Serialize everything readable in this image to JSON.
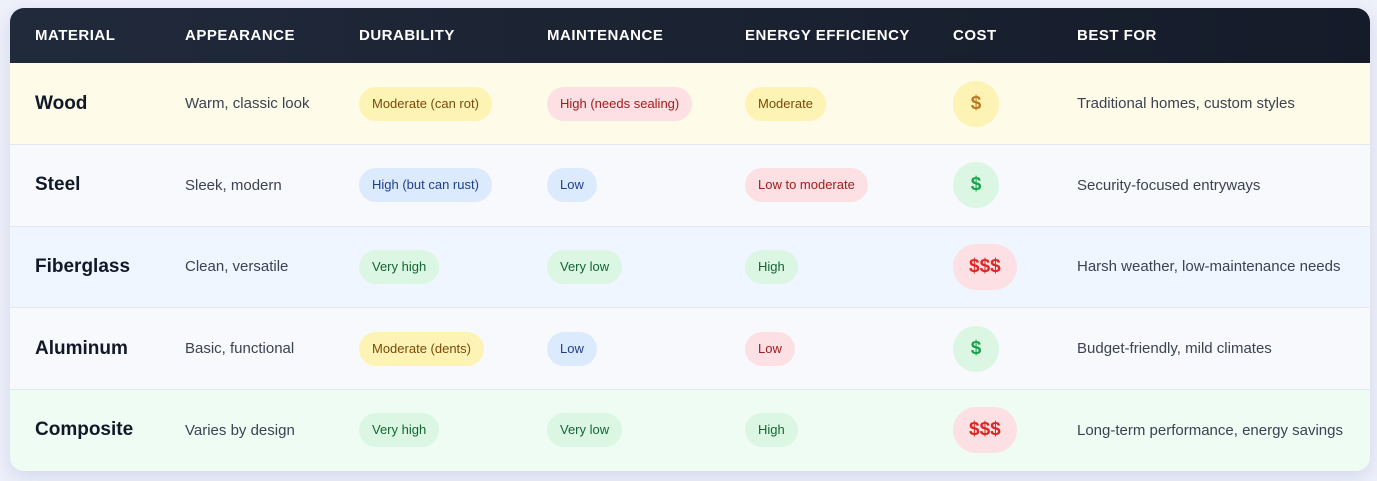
{
  "table": {
    "headers": [
      "MATERIAL",
      "APPEARANCE",
      "DURABILITY",
      "MAINTENANCE",
      "ENERGY EFFICIENCY",
      "COST",
      "BEST FOR"
    ],
    "rows": [
      {
        "material": "Wood",
        "appearance": "Warm, classic look",
        "durability": {
          "text": "Moderate (can rot)",
          "tone": "yellow"
        },
        "maintenance": {
          "text": "High (needs sealing)",
          "tone": "red"
        },
        "efficiency": {
          "text": "Moderate",
          "tone": "yellow"
        },
        "cost": {
          "text": "$",
          "tone": "yellow"
        },
        "best_for": "Traditional homes, custom styles",
        "row_bg": "#fefbe9"
      },
      {
        "material": "Steel",
        "appearance": "Sleek, modern",
        "durability": {
          "text": "High (but can rust)",
          "tone": "blue"
        },
        "maintenance": {
          "text": "Low",
          "tone": "blue"
        },
        "efficiency": {
          "text": "Low to moderate",
          "tone": "red"
        },
        "cost": {
          "text": "$",
          "tone": "green"
        },
        "best_for": "Security-focused entryways",
        "row_bg": "#f8f9fc"
      },
      {
        "material": "Fiberglass",
        "appearance": "Clean, versatile",
        "durability": {
          "text": "Very high",
          "tone": "green"
        },
        "maintenance": {
          "text": "Very low",
          "tone": "green"
        },
        "efficiency": {
          "text": "High",
          "tone": "green"
        },
        "cost": {
          "text": "$$$",
          "tone": "red"
        },
        "best_for": "Harsh weather, low-maintenance needs",
        "row_bg": "#eff6ff"
      },
      {
        "material": "Aluminum",
        "appearance": "Basic, functional",
        "durability": {
          "text": "Moderate (dents)",
          "tone": "yellow"
        },
        "maintenance": {
          "text": "Low",
          "tone": "blue"
        },
        "efficiency": {
          "text": "Low",
          "tone": "red"
        },
        "cost": {
          "text": "$",
          "tone": "green"
        },
        "best_for": "Budget-friendly, mild climates",
        "row_bg": "#f8f9fc"
      },
      {
        "material": "Composite",
        "appearance": "Varies by design",
        "durability": {
          "text": "Very high",
          "tone": "green"
        },
        "maintenance": {
          "text": "Very low",
          "tone": "green"
        },
        "efficiency": {
          "text": "High",
          "tone": "green"
        },
        "cost": {
          "text": "$$$",
          "tone": "red"
        },
        "best_for": "Long-term performance, energy savings",
        "row_bg": "#effcf3"
      }
    ]
  },
  "colors": {
    "header_bg": "#1b2231",
    "header_text": "#ffffff",
    "yellow": "#fdf3b5",
    "red": "#fde0e3",
    "blue": "#dceafd",
    "green": "#dbf6e3"
  }
}
